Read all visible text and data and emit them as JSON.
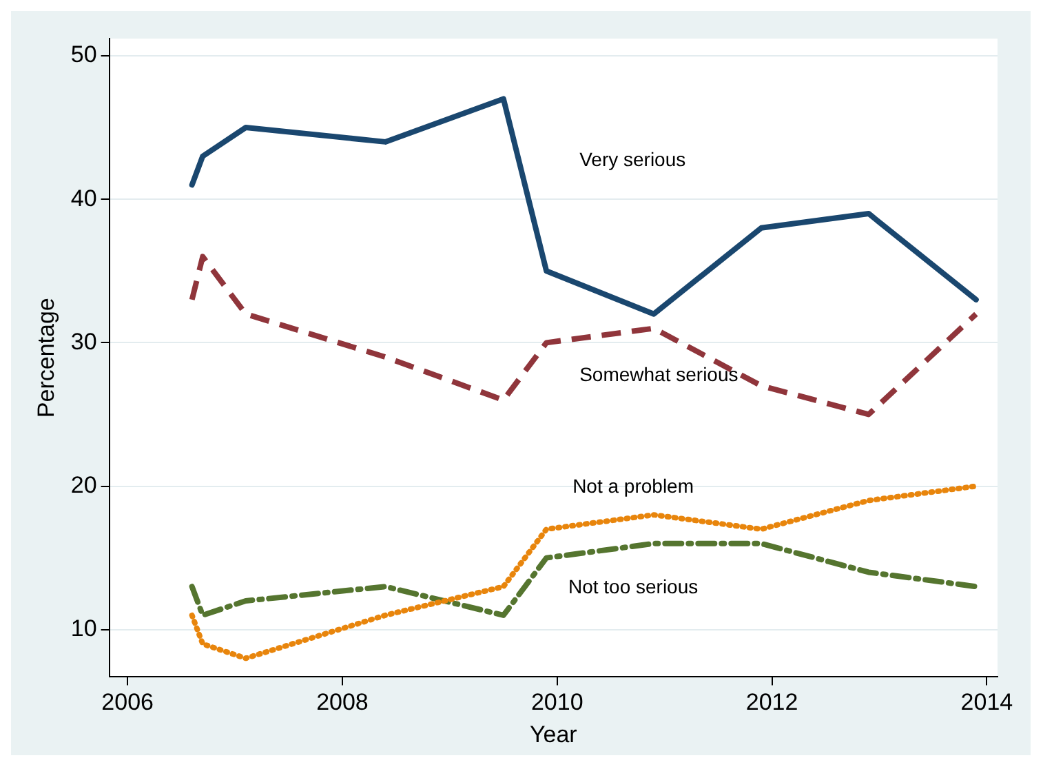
{
  "chart_data": {
    "type": "line",
    "xlabel": "Year",
    "ylabel": "Percentage",
    "xlim": [
      2005.83,
      2014.1
    ],
    "xticks": [
      2006,
      2008,
      2010,
      2012,
      2014
    ],
    "ylim": [
      6.7,
      51.2
    ],
    "yticks": [
      10,
      20,
      30,
      40,
      50
    ],
    "grid": "y",
    "legend": false,
    "marker": "none",
    "x": [
      2006.6,
      2006.7,
      2007.1,
      2008.4,
      2009.5,
      2009.9,
      2010.9,
      2011.9,
      2012.9,
      2013.9
    ],
    "series": [
      {
        "name": "Very serious",
        "color": "#1a476f",
        "line_style": "solid",
        "values": [
          41,
          43,
          45,
          44,
          47,
          35,
          32,
          38,
          39,
          33
        ]
      },
      {
        "name": "Somewhat serious",
        "color": "#90353b",
        "line_style": "dashed",
        "values": [
          33,
          36,
          32,
          29,
          26,
          30,
          31,
          27,
          25,
          32
        ]
      },
      {
        "name": "Not a problem",
        "color": "#e8850c",
        "line_style": "dotted",
        "values": [
          11,
          9,
          8,
          11,
          13,
          17,
          18,
          17,
          19,
          20
        ]
      },
      {
        "name": "Not too serious",
        "color": "#55752f",
        "line_style": "dashdot",
        "values": [
          13,
          11,
          12,
          13,
          11,
          15,
          16,
          16,
          14,
          13
        ]
      }
    ]
  }
}
